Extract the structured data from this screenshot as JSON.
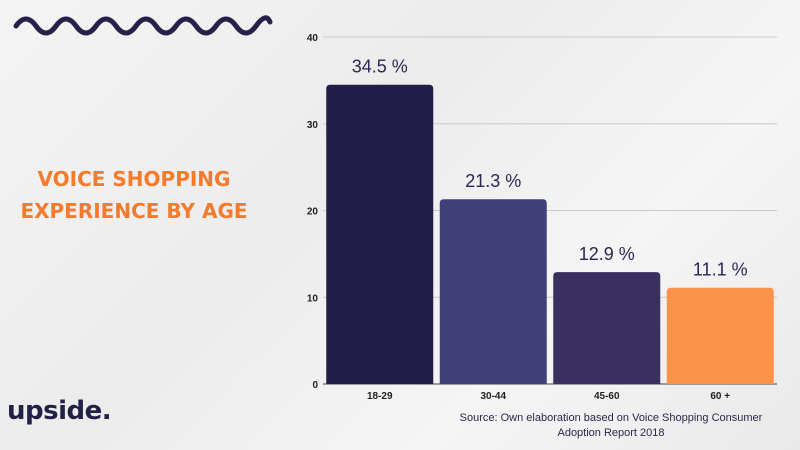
{
  "title_lines": [
    "VOICE SHOPPING",
    "EXPERIENCE BY AGE"
  ],
  "logo": "upside.",
  "source_lines": [
    "Source: Own elaboration based on Voice Shopping Consumer",
    "Adoption Report 2018"
  ],
  "colors": {
    "title": "#f47a2c",
    "logo": "#222047",
    "wave": "#27204a"
  },
  "chart_data": {
    "type": "bar",
    "categories": [
      "18-29",
      "30-44",
      "45-60",
      "60 +"
    ],
    "values": [
      34.5,
      21.3,
      12.9,
      11.1
    ],
    "data_labels": [
      "34.5 %",
      "21.3 %",
      "12.9 %",
      "11.1 %"
    ],
    "colors": [
      "#221e48",
      "#433f7a",
      "#39305f",
      "#fd924b"
    ],
    "ylim": [
      0,
      40
    ],
    "yticks": [
      0,
      10,
      20,
      30,
      40
    ],
    "grid": true
  }
}
